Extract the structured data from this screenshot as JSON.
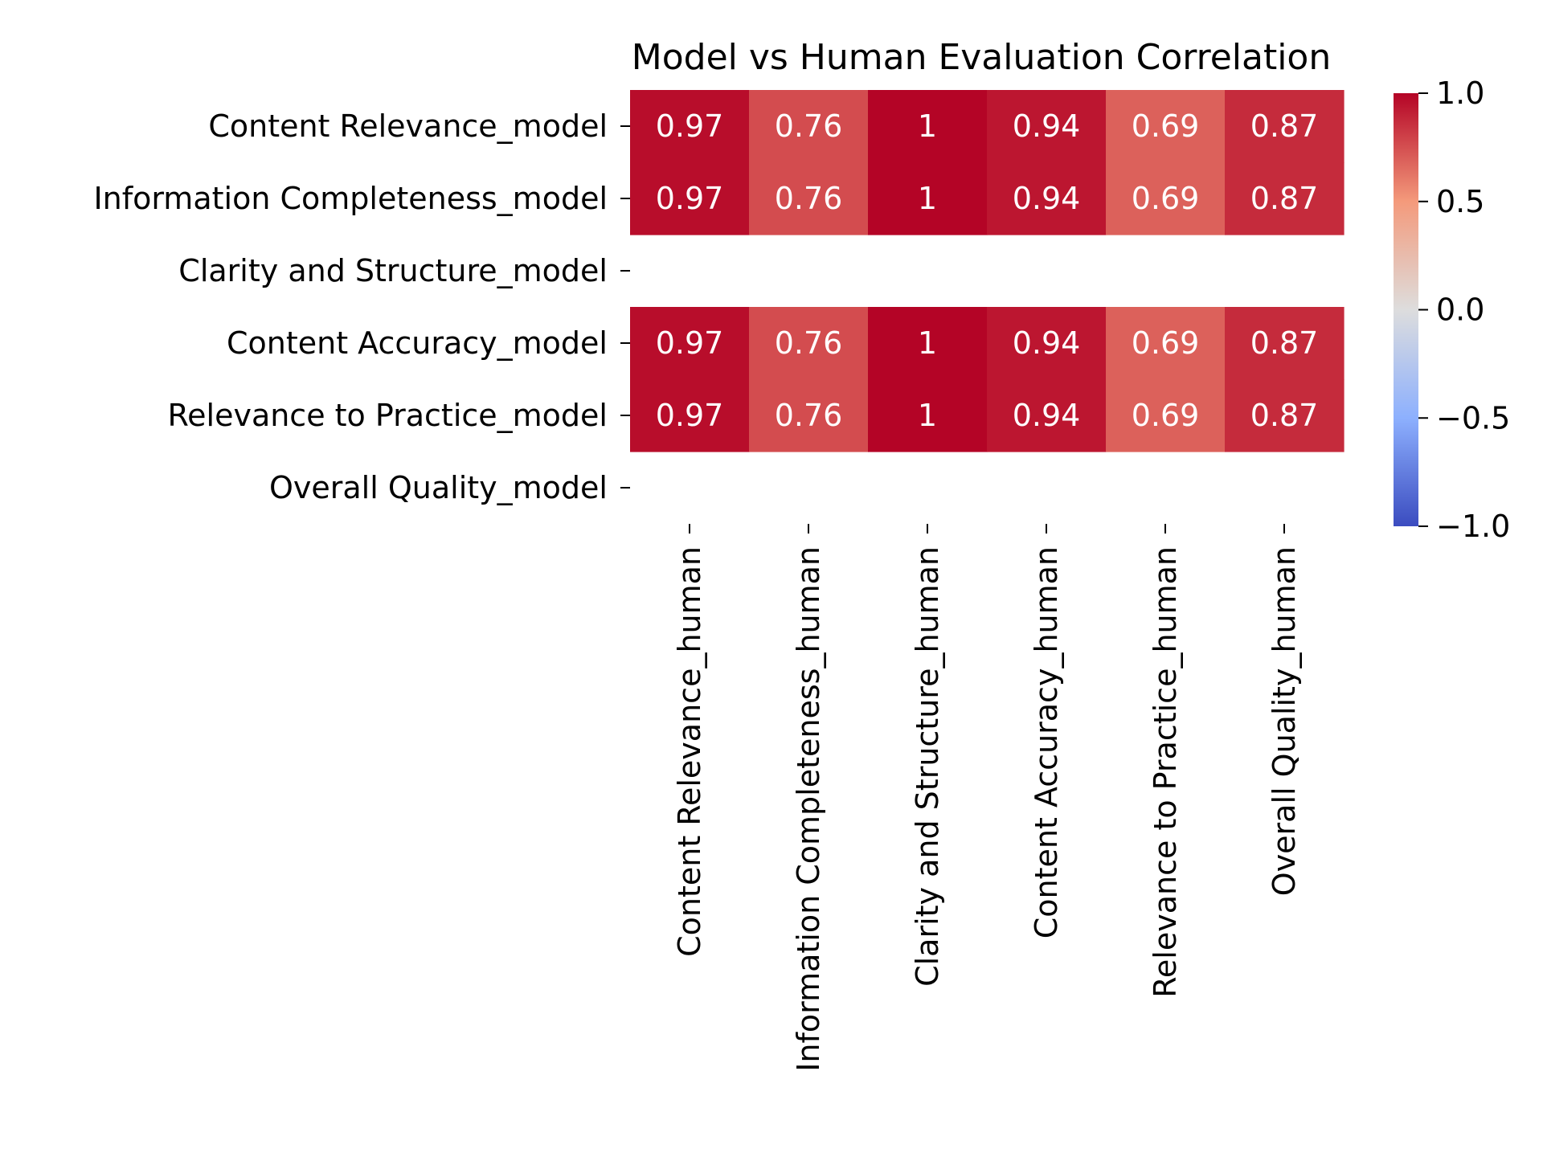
{
  "chart_data": {
    "type": "heatmap",
    "title": "Model vs Human Evaluation Correlation",
    "xlabel": "",
    "ylabel": "",
    "rows": [
      "Content Relevance_model",
      "Information Completeness_model",
      "Clarity and Structure_model",
      "Content Accuracy_model",
      "Relevance to Practice_model",
      "Overall Quality_model"
    ],
    "columns": [
      "Content Relevance_human",
      "Information Completeness_human",
      "Clarity and Structure_human",
      "Content Accuracy_human",
      "Relevance to Practice_human",
      "Overall Quality_human"
    ],
    "values": [
      [
        0.97,
        0.76,
        1,
        0.94,
        0.69,
        0.87
      ],
      [
        0.97,
        0.76,
        1,
        0.94,
        0.69,
        0.87
      ],
      [
        null,
        null,
        null,
        null,
        null,
        null
      ],
      [
        0.97,
        0.76,
        1,
        0.94,
        0.69,
        0.87
      ],
      [
        0.97,
        0.76,
        1,
        0.94,
        0.69,
        0.87
      ],
      [
        null,
        null,
        null,
        null,
        null,
        null
      ]
    ],
    "value_labels": [
      [
        "0.97",
        "0.76",
        "1",
        "0.94",
        "0.69",
        "0.87"
      ],
      [
        "0.97",
        "0.76",
        "1",
        "0.94",
        "0.69",
        "0.87"
      ],
      [
        "",
        "",
        "",
        "",
        "",
        ""
      ],
      [
        "0.97",
        "0.76",
        "1",
        "0.94",
        "0.69",
        "0.87"
      ],
      [
        "0.97",
        "0.76",
        "1",
        "0.94",
        "0.69",
        "0.87"
      ],
      [
        "",
        "",
        "",
        "",
        "",
        ""
      ]
    ],
    "colormap": "coolwarm",
    "vmin": -1,
    "vmax": 1,
    "colorbar_ticks": [
      1,
      0.5,
      0,
      -0.5,
      -1
    ],
    "colorbar_tick_labels": [
      "1.0",
      "0.5",
      "0.0",
      "−0.5",
      "−1.0"
    ],
    "annotation_color": "#ffffff",
    "grid": false,
    "legend": "colorbar-right"
  }
}
